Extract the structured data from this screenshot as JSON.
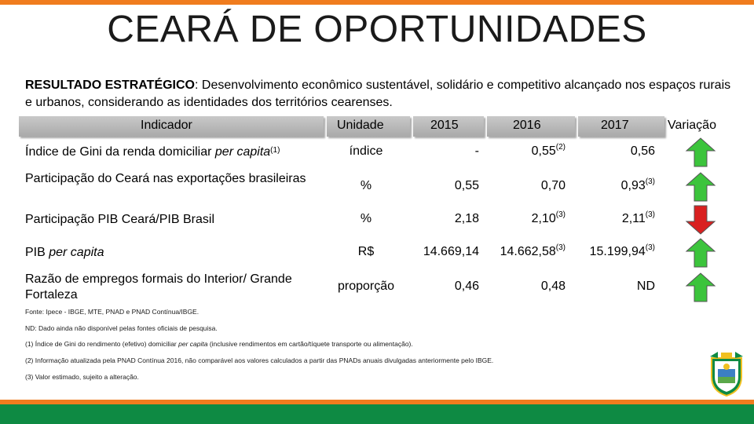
{
  "title": "CEARÁ DE OPORTUNIDADES",
  "strategic_result": {
    "label": "RESULTADO ESTRATÉGICO",
    "text": ": Desenvolvimento econômico sustentável, solidário e competitivo alcançado nos espaços rurais e urbanos, considerando as identidades dos territórios cearenses."
  },
  "table": {
    "headers": {
      "indicator": "Indicador",
      "unit": "Unidade",
      "y2015": "2015",
      "y2016": "2016",
      "y2017": "2017",
      "variation": "Variação"
    },
    "rows": [
      {
        "indicator_pre": "Índice de Gini da renda domiciliar ",
        "indicator_em": "per capita",
        "indicator_sup": "(1)",
        "unit": "índice",
        "v2015": "-",
        "v2015_sup": "",
        "v2016": "0,55",
        "v2016_sup": "(2)",
        "v2017": "0,56",
        "v2017_sup": "",
        "variation": "up",
        "variation_color": "#3cc43c"
      },
      {
        "indicator_pre": "Participação do Ceará nas exportações brasileiras",
        "indicator_em": "",
        "indicator_sup": "",
        "unit": "%",
        "v2015": "0,55",
        "v2015_sup": "",
        "v2016": "0,70",
        "v2016_sup": "",
        "v2017": "0,93",
        "v2017_sup": "(3)",
        "variation": "up",
        "variation_color": "#3cc43c"
      },
      {
        "indicator_pre": "Participação PIB Ceará/PIB Brasil",
        "indicator_em": "",
        "indicator_sup": "",
        "unit": "%",
        "v2015": "2,18",
        "v2015_sup": "",
        "v2016": "2,10",
        "v2016_sup": "(3)",
        "v2017": "2,11",
        "v2017_sup": "(3)",
        "variation": "down",
        "variation_color": "#d92020"
      },
      {
        "indicator_pre": "PIB ",
        "indicator_em": "per capita",
        "indicator_sup": "",
        "unit": "R$",
        "v2015": "14.669,14",
        "v2015_sup": "",
        "v2016": "14.662,58",
        "v2016_sup": "(3)",
        "v2017": "15.199,94",
        "v2017_sup": "(3)",
        "variation": "up",
        "variation_color": "#3cc43c"
      },
      {
        "indicator_pre": "Razão de empregos formais do Interior/ Grande Fortaleza",
        "indicator_em": "",
        "indicator_sup": "",
        "unit": "proporção",
        "v2015": "0,46",
        "v2015_sup": "",
        "v2016": "0,48",
        "v2016_sup": "",
        "v2017": "ND",
        "v2017_sup": "",
        "variation": "up",
        "variation_color": "#3cc43c"
      }
    ]
  },
  "notes": {
    "source": "Fonte: Ipece - IBGE, MTE, PNAD e PNAD Contínua/IBGE.",
    "nd": "ND: Dado ainda não disponível pelas fontes oficiais de pesquisa.",
    "note1_pre": "(1)  Índice de Gini do rendimento (efetivo) domiciliar ",
    "note1_em": "per capita",
    "note1_post": " (inclusive rendimentos em cartão/tíquete transporte ou alimentação).",
    "note2": "(2)  Informação atualizada pela PNAD Contínua 2016, não comparável aos valores calculados a partir das PNADs anuais divulgadas anteriormente pelo IBGE.",
    "note3": "(3) Valor estimado, sujeito a alteração."
  },
  "colors": {
    "accent_orange": "#f07c1e",
    "accent_green": "#0e8a43",
    "arrow_up": "#3cc43c",
    "arrow_down": "#d92020"
  },
  "icons": {
    "up": "arrow-up-icon",
    "down": "arrow-down-icon",
    "crest": "ceara-crest-icon"
  }
}
